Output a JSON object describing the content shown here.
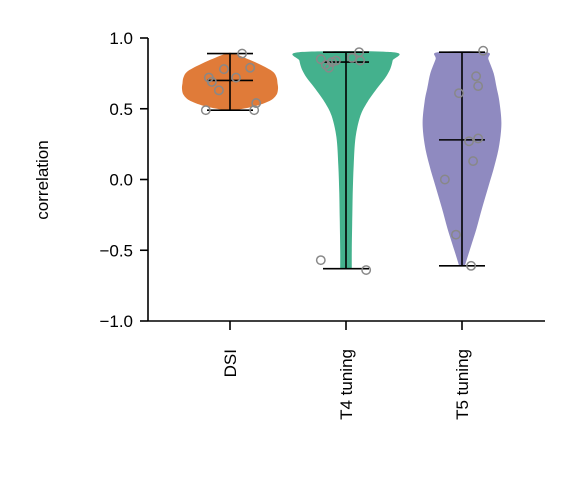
{
  "chart_data": {
    "type": "violin",
    "ylabel": "correlation",
    "ylim": [
      -1.0,
      1.0
    ],
    "yticks": [
      {
        "value": 1.0,
        "label": "1.0"
      },
      {
        "value": 0.5,
        "label": "0.5"
      },
      {
        "value": 0.0,
        "label": "0.0"
      },
      {
        "value": -0.5,
        "label": "−0.5"
      },
      {
        "value": -1.0,
        "label": "−1.0"
      }
    ],
    "grid": false,
    "categories": [
      "DSI",
      "T4 tuning",
      "T5 tuning"
    ],
    "series": [
      {
        "name": "DSI",
        "color": "#e07b39",
        "min": 0.49,
        "max": 0.89,
        "median": 0.7,
        "density": [
          [
            0.49,
            0.12
          ],
          [
            0.52,
            0.55
          ],
          [
            0.56,
            0.85
          ],
          [
            0.6,
            0.97
          ],
          [
            0.64,
            1.0
          ],
          [
            0.68,
            0.99
          ],
          [
            0.72,
            0.97
          ],
          [
            0.76,
            0.9
          ],
          [
            0.8,
            0.7
          ],
          [
            0.84,
            0.45
          ],
          [
            0.89,
            0.08
          ]
        ],
        "points": [
          [
            -0.48,
            0.49
          ],
          [
            0.48,
            0.49
          ],
          [
            0.52,
            0.54
          ],
          [
            -0.42,
            0.72
          ],
          [
            -0.36,
            0.69
          ],
          [
            -0.22,
            0.63
          ],
          [
            -0.12,
            0.78
          ],
          [
            0.12,
            0.72
          ],
          [
            0.4,
            0.79
          ],
          [
            0.24,
            0.89
          ]
        ]
      },
      {
        "name": "T4 tuning",
        "color": "#44b18d",
        "min": -0.63,
        "max": 0.9,
        "median": 0.83,
        "density": [
          [
            -0.63,
            0.12
          ],
          [
            -0.5,
            0.12
          ],
          [
            -0.3,
            0.13
          ],
          [
            -0.1,
            0.14
          ],
          [
            0.1,
            0.16
          ],
          [
            0.3,
            0.2
          ],
          [
            0.45,
            0.3
          ],
          [
            0.55,
            0.45
          ],
          [
            0.65,
            0.66
          ],
          [
            0.72,
            0.82
          ],
          [
            0.78,
            0.92
          ],
          [
            0.84,
            0.97
          ],
          [
            0.9,
            0.98
          ]
        ],
        "points": [
          [
            -0.5,
            -0.57
          ],
          [
            0.4,
            -0.64
          ],
          [
            -0.5,
            0.85
          ],
          [
            -0.4,
            0.81
          ],
          [
            -0.34,
            0.79
          ],
          [
            -0.2,
            0.84
          ],
          [
            0.12,
            0.86
          ],
          [
            0.26,
            0.9
          ],
          [
            0.28,
            0.84
          ],
          [
            -0.28,
            0.83
          ]
        ]
      },
      {
        "name": "T5 tuning",
        "color": "#8f8ac0",
        "min": -0.61,
        "max": 0.9,
        "median": 0.28,
        "density": [
          [
            -0.61,
            0.06
          ],
          [
            -0.5,
            0.16
          ],
          [
            -0.35,
            0.3
          ],
          [
            -0.2,
            0.42
          ],
          [
            -0.05,
            0.55
          ],
          [
            0.1,
            0.68
          ],
          [
            0.25,
            0.78
          ],
          [
            0.4,
            0.82
          ],
          [
            0.55,
            0.78
          ],
          [
            0.65,
            0.72
          ],
          [
            0.75,
            0.66
          ],
          [
            0.85,
            0.55
          ],
          [
            0.9,
            0.5
          ]
        ],
        "points": [
          [
            -0.34,
            0.0
          ],
          [
            -0.12,
            -0.39
          ],
          [
            -0.06,
            0.61
          ],
          [
            0.14,
            0.27
          ],
          [
            0.22,
            0.13
          ],
          [
            0.32,
            0.29
          ],
          [
            0.28,
            0.73
          ],
          [
            0.32,
            0.66
          ],
          [
            0.18,
            -0.61
          ],
          [
            0.42,
            0.91
          ]
        ]
      }
    ]
  }
}
